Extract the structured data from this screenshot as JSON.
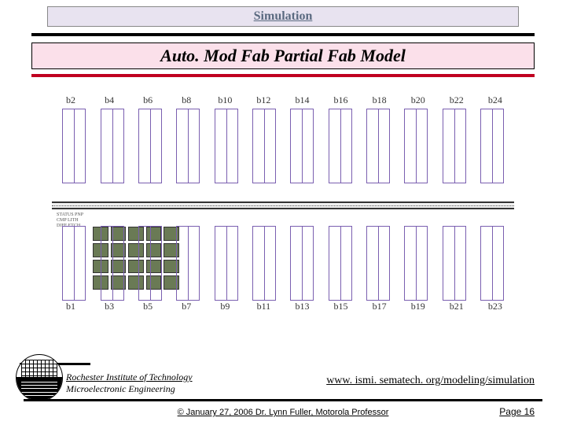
{
  "header": "Simulation",
  "title": "Auto. Mod Fab Partial Fab Model",
  "diagram": {
    "top_labels": [
      "b2",
      "b4",
      "b6",
      "b8",
      "b10",
      "b12",
      "b14",
      "b16",
      "b18",
      "b20",
      "b22",
      "b24"
    ],
    "bot_labels": [
      "b1",
      "b3",
      "b5",
      "b7",
      "b9",
      "b11",
      "b13",
      "b15",
      "b17",
      "b19",
      "b21",
      "b23"
    ],
    "bay_count": 12,
    "bay_color": "#7a5fb0",
    "tool_rows": 4,
    "tool_cols": 5,
    "tool_color": "#6a7a55",
    "side_text": "STATUS\nPNP\nCMP\nLITH\nDIFF\nETCH"
  },
  "org": {
    "line1": "Rochester Institute of Technology",
    "line2": "Microelectronic Engineering"
  },
  "link": "www. ismi. sematech. org/modeling/simulation",
  "copyright": "© January 27, 2006  Dr. Lynn Fuller, Motorola Professor",
  "page": "Page 16",
  "colors": {
    "header_bg": "#e8e3f0",
    "title_bg": "#fbe0ea",
    "accent_red": "#c00020"
  }
}
